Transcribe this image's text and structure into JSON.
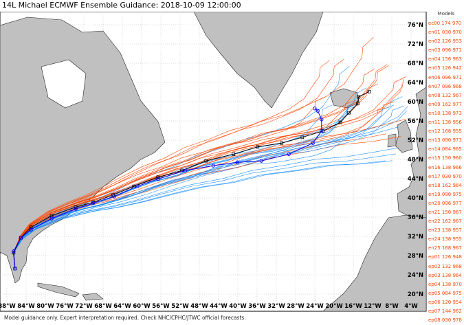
{
  "title": "14L Michael ECMWF Ensemble Guidance: 2018-10-09 12:00:00",
  "footer": "Model guidance only. Expert interpretation required. Check NHC/CPHC/JTWC official forecasts.",
  "legend": {
    "header": "Models",
    "items": [
      "ec00 174 970",
      "en01 030 970",
      "en02 126 953",
      "en03 096 971",
      "en04 156 963",
      "en05 126 942",
      "en06 096 971",
      "en07 096 968",
      "en08 132 967",
      "en09 162 977",
      "en10 138 973",
      "en11 138 956",
      "en12 168 955",
      "en13 090 973",
      "en14 084 965",
      "en15 150 960",
      "en16 138 966",
      "en17 030 970",
      "en18 162 964",
      "en19 090 975",
      "en20 096 977",
      "en21 150 967",
      "en22 162 967",
      "en23 138 957",
      "en24 138 955",
      "en25 168 967",
      "ep01 126 948",
      "ep02 132 968",
      "ep03 138 964",
      "ep04 138 970",
      "ep05 084 975",
      "ep06 120 954",
      "ep07 144 962",
      "ep08 030 978"
    ]
  },
  "colors": {
    "land": "#c0c0c0",
    "ocean": "#ffffff",
    "deterministic": "#0000ff",
    "ensemble_mean": "#000000",
    "ensemble_red": "#ff4500",
    "ensemble_blue": "#1e90ff",
    "outlier": "#2e8b57"
  },
  "axes": {
    "lon_labels": [
      "88°W",
      "84°W",
      "80°W",
      "76°W",
      "72°W",
      "68°W",
      "64°W",
      "60°W",
      "56°W",
      "52°W",
      "48°W",
      "44°W",
      "40°W",
      "36°W",
      "32°W",
      "28°W",
      "24°W",
      "20°W",
      "16°W",
      "12°W",
      "8°W",
      "4°W"
    ],
    "lat_labels": [
      "76°N",
      "72°N",
      "68°N",
      "64°N",
      "60°N",
      "56°N",
      "52°N",
      "48°N",
      "44°N",
      "40°N",
      "36°N",
      "32°N",
      "28°N",
      "24°N",
      "20°N"
    ]
  },
  "tracks": {
    "ensemble_mean": [
      [
        -86.3,
        25.3
      ],
      [
        -86.6,
        28.6
      ],
      [
        -85.1,
        31.7
      ],
      [
        -83,
        33.9
      ],
      [
        -78.7,
        36.3
      ],
      [
        -73.7,
        38.1
      ],
      [
        -70.1,
        39.1
      ],
      [
        -65.9,
        40.6
      ],
      [
        -61.6,
        42.4
      ],
      [
        -56.6,
        44.3
      ],
      [
        -51.6,
        45.7
      ],
      [
        -46.6,
        47.7
      ],
      [
        -40.9,
        49.1
      ],
      [
        -35.9,
        50.6
      ],
      [
        -30.9,
        51.4
      ],
      [
        -26.6,
        52.6
      ],
      [
        -22.3,
        53.9
      ],
      [
        -18.7,
        55.7
      ],
      [
        -16.9,
        57.7
      ],
      [
        -15.1,
        59.6
      ],
      [
        -14.9,
        61
      ],
      [
        -12.7,
        62.1
      ]
    ],
    "ec00": [
      [
        -86.3,
        25.3
      ],
      [
        -86.6,
        28.9
      ],
      [
        -85.1,
        31.7
      ],
      [
        -83,
        33.4
      ],
      [
        -78.7,
        35.7
      ],
      [
        -73.7,
        37.7
      ],
      [
        -70.1,
        38.9
      ],
      [
        -65.7,
        40.3
      ],
      [
        -60.9,
        42.4
      ],
      [
        -56.6,
        43.9
      ],
      [
        -50.9,
        45.7
      ],
      [
        -45.1,
        46.7
      ],
      [
        -40.1,
        47.4
      ],
      [
        -35.1,
        47.7
      ],
      [
        -29.4,
        49.1
      ],
      [
        -24.4,
        51.4
      ],
      [
        -22.6,
        53.9
      ],
      [
        -22.6,
        56.3
      ],
      [
        -23.4,
        58.1
      ],
      [
        -24,
        58.6
      ]
    ]
  }
}
